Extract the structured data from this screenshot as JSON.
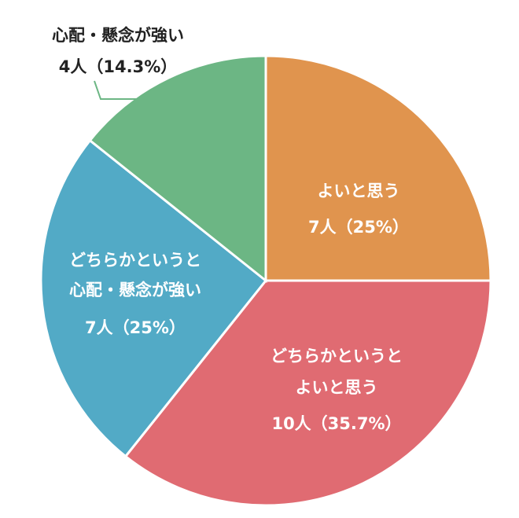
{
  "chart_data": {
    "type": "pie",
    "title": "",
    "unit": "人",
    "slices": [
      {
        "name": "よいと思う",
        "name_lines": [
          "よいと思う"
        ],
        "value": 7,
        "value_text": "7人（25%）",
        "color": "#e0944e",
        "text_color": "#ffffff"
      },
      {
        "name": "どちらかというとよいと思う",
        "name_lines": [
          "どちらかというと",
          "よいと思う"
        ],
        "value": 10,
        "value_text": "10人（35.7%）",
        "color": "#e06b72",
        "text_color": "#ffffff"
      },
      {
        "name": "どちらかというと心配・懸念が強い",
        "name_lines": [
          "どちらかというと",
          "心配・懸念が強い"
        ],
        "value": 7,
        "value_text": "7人（25%）",
        "color": "#52aac6",
        "text_color": "#ffffff"
      },
      {
        "name": "心配・懸念が強い",
        "name_lines": [
          "心配・懸念が強い"
        ],
        "value": 4,
        "value_text": "4人（14.3%）",
        "color": "#6cb684",
        "text_color": "#222222"
      }
    ],
    "start": "12 o'clock",
    "direction": "clockwise"
  }
}
